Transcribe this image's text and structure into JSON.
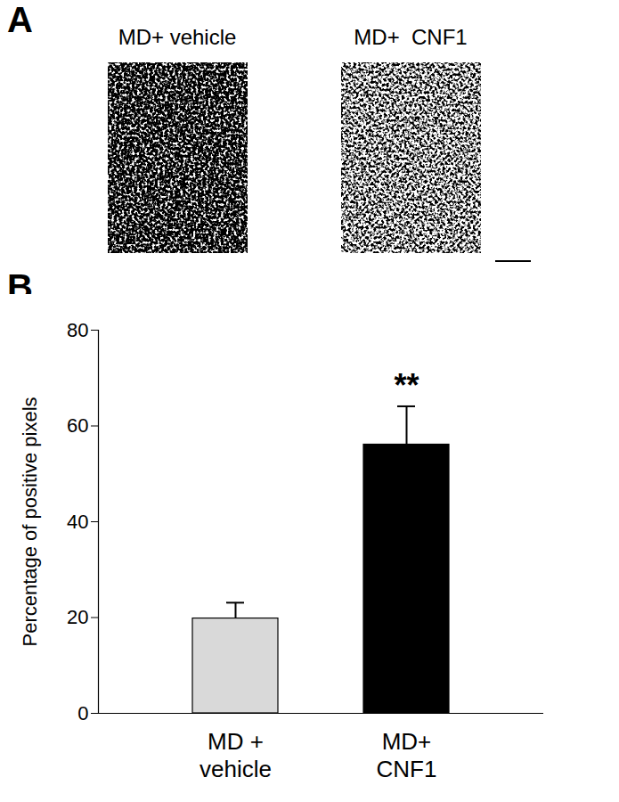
{
  "panel_a": {
    "label": "A",
    "captions": [
      "MD+ vehicle",
      "MD+  CNF1"
    ]
  },
  "panel_b": {
    "label": "B"
  },
  "chart_data": {
    "type": "bar",
    "categories": [
      "MD +\nvehicle",
      "MD+\nCNF1"
    ],
    "values": [
      19.8,
      56.1
    ],
    "errors": [
      3.3,
      8.0
    ],
    "colors": [
      "#d9d9d9",
      "#000000"
    ],
    "ylabel": "Percentage of positive pixels",
    "ylim": [
      0,
      80
    ],
    "yticks": [
      0,
      20,
      40,
      60,
      80
    ],
    "annotations": [
      {
        "category": "MD+\nCNF1",
        "text": "**"
      }
    ],
    "grid": false
  }
}
